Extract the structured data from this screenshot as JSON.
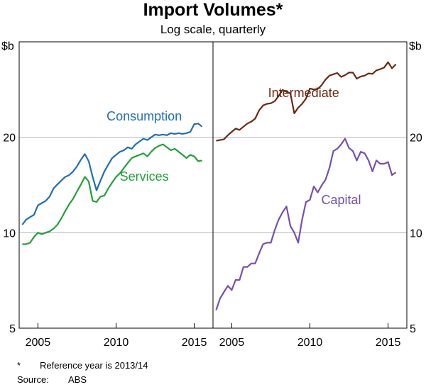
{
  "title": "Import Volumes*",
  "subtitle": "Log scale, quarterly",
  "unit_left": "$b",
  "unit_right": "$b",
  "footnote_marker": "*",
  "footnote_text": "Reference year is 2013/14",
  "source_label": "Source:",
  "source_value": "ABS",
  "colors": {
    "consumption": "#1f6fb4",
    "services": "#21a03c",
    "intermediate": "#6b2a12",
    "capital": "#7650ad",
    "grid": "#b4b4b4",
    "axis": "#000000"
  },
  "chart_data": [
    {
      "type": "line",
      "panel": "left",
      "title": "",
      "xlabel": "",
      "ylabel": "$b",
      "scale": "log",
      "xlim": [
        2003.8,
        2016.2
      ],
      "ylim": [
        5,
        40
      ],
      "yticks": [
        5,
        10,
        20
      ],
      "ytick_labels": [
        "5",
        "10",
        "20"
      ],
      "xticks": [
        2005,
        2010,
        2015
      ],
      "xtick_labels": [
        "2005",
        "2010",
        "2015"
      ],
      "series": [
        {
          "name": "Consumption",
          "color_key": "consumption",
          "label_anchor": [
            2011.8,
            22.6
          ],
          "x": [
            2004.0,
            2004.25,
            2004.5,
            2004.75,
            2005.0,
            2005.25,
            2005.5,
            2005.75,
            2006.0,
            2006.25,
            2006.5,
            2006.75,
            2007.0,
            2007.25,
            2007.5,
            2007.75,
            2008.0,
            2008.25,
            2008.5,
            2008.75,
            2009.0,
            2009.25,
            2009.5,
            2009.75,
            2010.0,
            2010.25,
            2010.5,
            2010.75,
            2011.0,
            2011.25,
            2011.5,
            2011.75,
            2012.0,
            2012.25,
            2012.5,
            2012.75,
            2013.0,
            2013.25,
            2013.5,
            2013.75,
            2014.0,
            2014.25,
            2014.5,
            2014.75,
            2015.0,
            2015.25,
            2015.5
          ],
          "values": [
            10.6,
            11.0,
            11.2,
            11.4,
            12.2,
            12.4,
            12.6,
            13.0,
            13.8,
            14.2,
            14.6,
            15.0,
            15.2,
            15.6,
            16.2,
            17.0,
            17.7,
            16.8,
            15.0,
            13.6,
            14.6,
            15.6,
            16.4,
            17.2,
            17.6,
            18.0,
            18.2,
            18.6,
            18.4,
            19.0,
            19.4,
            19.8,
            19.6,
            20.0,
            20.4,
            20.3,
            20.4,
            20.3,
            20.6,
            20.5,
            20.6,
            20.5,
            20.6,
            20.8,
            22.0,
            22.1,
            21.6
          ]
        },
        {
          "name": "Services",
          "color_key": "services",
          "label_anchor": [
            2011.8,
            14.6
          ],
          "x": [
            2004.0,
            2004.25,
            2004.5,
            2004.75,
            2005.0,
            2005.25,
            2005.5,
            2005.75,
            2006.0,
            2006.25,
            2006.5,
            2006.75,
            2007.0,
            2007.25,
            2007.5,
            2007.75,
            2008.0,
            2008.25,
            2008.5,
            2008.75,
            2009.0,
            2009.25,
            2009.5,
            2009.75,
            2010.0,
            2010.25,
            2010.5,
            2010.75,
            2011.0,
            2011.25,
            2011.5,
            2011.75,
            2012.0,
            2012.25,
            2012.5,
            2012.75,
            2013.0,
            2013.25,
            2013.5,
            2013.75,
            2014.0,
            2014.25,
            2014.5,
            2014.75,
            2015.0,
            2015.25,
            2015.5
          ],
          "values": [
            9.2,
            9.2,
            9.3,
            9.7,
            10.0,
            9.9,
            10.0,
            10.1,
            10.3,
            10.6,
            11.1,
            11.7,
            12.3,
            12.8,
            13.5,
            14.2,
            15.0,
            14.5,
            12.6,
            12.5,
            13.0,
            13.1,
            13.8,
            14.4,
            15.0,
            15.4,
            16.0,
            16.6,
            17.2,
            17.4,
            17.6,
            17.8,
            17.4,
            18.0,
            18.5,
            18.8,
            19.0,
            18.6,
            18.2,
            18.4,
            18.0,
            17.6,
            17.2,
            17.6,
            17.4,
            16.8,
            16.9
          ]
        }
      ]
    },
    {
      "type": "line",
      "panel": "right",
      "title": "",
      "xlabel": "",
      "ylabel": "$b",
      "scale": "log",
      "xlim": [
        2003.8,
        2016.2
      ],
      "ylim": [
        5,
        40
      ],
      "yticks": [
        5,
        10,
        20
      ],
      "ytick_labels": [
        "5",
        "10",
        "20"
      ],
      "xticks": [
        2005,
        2010,
        2015
      ],
      "xtick_labels": [
        "2005",
        "2010",
        "2015"
      ],
      "series": [
        {
          "name": "Intermediate",
          "color_key": "intermediate",
          "label_anchor": [
            2009.6,
            26.8
          ],
          "x": [
            2004.0,
            2004.25,
            2004.5,
            2004.75,
            2005.0,
            2005.25,
            2005.5,
            2005.75,
            2006.0,
            2006.25,
            2006.5,
            2006.75,
            2007.0,
            2007.25,
            2007.5,
            2007.75,
            2008.0,
            2008.25,
            2008.5,
            2008.75,
            2009.0,
            2009.25,
            2009.5,
            2009.75,
            2010.0,
            2010.25,
            2010.5,
            2010.75,
            2011.0,
            2011.25,
            2011.5,
            2011.75,
            2012.0,
            2012.25,
            2012.5,
            2012.75,
            2013.0,
            2013.25,
            2013.5,
            2013.75,
            2014.0,
            2014.25,
            2014.5,
            2014.75,
            2015.0,
            2015.25,
            2015.5
          ],
          "values": [
            19.5,
            19.6,
            19.7,
            20.3,
            20.8,
            21.3,
            21.1,
            21.6,
            22.1,
            22.4,
            22.9,
            24.3,
            25.2,
            25.5,
            25.6,
            26.0,
            27.0,
            28.2,
            27.8,
            27.5,
            23.8,
            24.8,
            25.5,
            26.5,
            28.5,
            28.3,
            28.4,
            29.2,
            30.4,
            31.3,
            31.6,
            31.9,
            31.0,
            31.4,
            32.0,
            32.0,
            30.6,
            31.1,
            31.3,
            31.8,
            31.7,
            32.5,
            32.8,
            33.2,
            34.5,
            33.0,
            34.0
          ]
        },
        {
          "name": "Capital",
          "color_key": "capital",
          "label_anchor": [
            2012.0,
            12.3
          ],
          "x": [
            2004.0,
            2004.25,
            2004.5,
            2004.75,
            2005.0,
            2005.25,
            2005.5,
            2005.75,
            2006.0,
            2006.25,
            2006.5,
            2006.75,
            2007.0,
            2007.25,
            2007.5,
            2007.75,
            2008.0,
            2008.25,
            2008.5,
            2008.75,
            2009.0,
            2009.25,
            2009.5,
            2009.75,
            2010.0,
            2010.25,
            2010.5,
            2010.75,
            2011.0,
            2011.25,
            2011.5,
            2011.75,
            2012.0,
            2012.25,
            2012.5,
            2012.75,
            2013.0,
            2013.25,
            2013.5,
            2013.75,
            2014.0,
            2014.25,
            2014.5,
            2014.75,
            2015.0,
            2015.25,
            2015.5
          ],
          "values": [
            5.7,
            6.2,
            6.5,
            6.8,
            6.6,
            7.1,
            7.1,
            7.8,
            7.8,
            8.0,
            8.0,
            8.6,
            9.2,
            9.3,
            9.3,
            10.2,
            11.0,
            11.6,
            12.1,
            10.5,
            10.0,
            9.3,
            11.0,
            12.5,
            12.7,
            14.0,
            13.4,
            14.1,
            14.7,
            16.0,
            18.1,
            18.4,
            19.0,
            19.8,
            18.5,
            18.1,
            16.9,
            18.0,
            17.8,
            16.9,
            15.6,
            16.9,
            16.5,
            16.5,
            16.7,
            15.2,
            15.5
          ]
        }
      ]
    }
  ]
}
